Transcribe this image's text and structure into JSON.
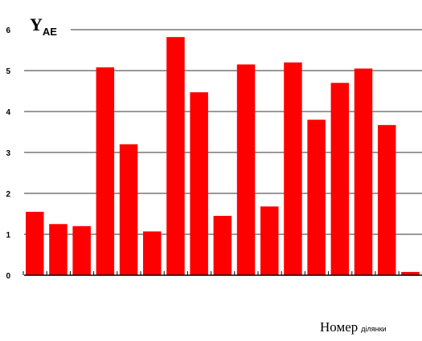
{
  "chart_data": {
    "type": "bar",
    "ylabel_main": "Y",
    "ylabel_sub": "AE",
    "xlabel_main": "Номер",
    "xlabel_sub": "ділянки",
    "ylim": [
      0,
      6
    ],
    "yticks": [
      "0",
      "1",
      "2",
      "3",
      "4",
      "5",
      "6"
    ],
    "grid": true,
    "bar_color": "#ff0000",
    "values": [
      1.55,
      1.25,
      1.2,
      5.08,
      3.2,
      1.07,
      5.82,
      4.47,
      1.45,
      5.15,
      1.68,
      5.2,
      3.8,
      4.7,
      5.05,
      3.67,
      0.08
    ]
  }
}
